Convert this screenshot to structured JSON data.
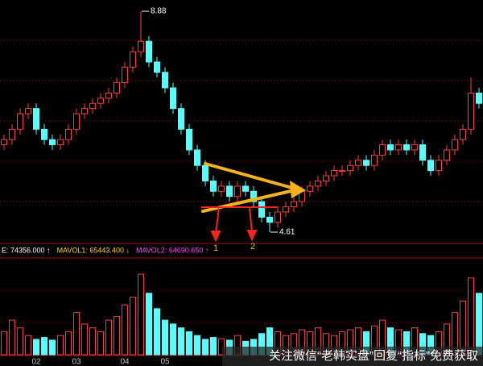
{
  "chart_data": {
    "type": "candlestick",
    "categories": [
      null,
      null,
      null,
      null,
      "02",
      null,
      null,
      null,
      null,
      "03",
      null,
      null,
      null,
      null,
      null,
      "04",
      null,
      null,
      null,
      null,
      "05",
      null,
      null,
      null,
      null,
      null,
      null,
      null,
      null,
      null,
      null,
      null,
      null,
      null,
      null,
      null,
      null,
      null,
      null,
      null,
      null,
      null,
      null,
      null,
      null,
      null,
      null,
      null,
      null,
      null,
      null,
      null,
      null,
      null,
      null,
      null,
      null,
      null,
      null,
      null
    ],
    "open": [
      6.3,
      6.4,
      6.6,
      6.9,
      7.0,
      6.6,
      6.4,
      6.3,
      6.4,
      6.6,
      6.9,
      7.0,
      7.1,
      7.2,
      7.3,
      7.5,
      7.8,
      8.1,
      8.3,
      7.9,
      7.7,
      7.4,
      7.0,
      6.6,
      6.2,
      5.9,
      5.6,
      5.4,
      5.5,
      5.3,
      5.5,
      5.4,
      5.2,
      4.9,
      4.8,
      5.0,
      5.1,
      5.2,
      5.4,
      5.5,
      5.6,
      5.7,
      5.8,
      5.8,
      5.9,
      6.0,
      5.9,
      6.1,
      6.3,
      6.2,
      6.3,
      6.2,
      6.3,
      6.0,
      5.8,
      6.0,
      6.2,
      6.4,
      6.6,
      7.3
    ],
    "high": [
      6.5,
      6.7,
      7.0,
      7.1,
      7.1,
      6.7,
      6.5,
      6.5,
      6.7,
      7.0,
      7.1,
      7.2,
      7.3,
      7.4,
      7.6,
      7.9,
      8.2,
      8.88,
      8.4,
      8.0,
      7.8,
      7.5,
      7.1,
      6.7,
      6.3,
      6.0,
      5.7,
      5.6,
      5.6,
      5.6,
      5.6,
      5.5,
      5.3,
      5.0,
      5.1,
      5.2,
      5.3,
      5.5,
      5.6,
      5.7,
      5.8,
      5.9,
      5.9,
      6.0,
      6.1,
      6.1,
      6.2,
      6.4,
      6.4,
      6.4,
      6.4,
      6.4,
      6.4,
      6.1,
      6.1,
      6.3,
      6.5,
      6.7,
      7.6,
      7.4
    ],
    "low": [
      6.2,
      6.3,
      6.5,
      6.8,
      6.5,
      6.3,
      6.2,
      6.2,
      6.3,
      6.5,
      6.8,
      6.9,
      7.0,
      7.1,
      7.2,
      7.4,
      7.7,
      8.0,
      7.8,
      7.6,
      7.3,
      6.9,
      6.5,
      6.1,
      5.8,
      5.5,
      5.3,
      5.3,
      5.2,
      5.2,
      5.3,
      5.1,
      4.8,
      4.61,
      4.7,
      4.9,
      5.0,
      5.1,
      5.3,
      5.4,
      5.5,
      5.6,
      5.7,
      5.7,
      5.8,
      5.8,
      5.8,
      6.0,
      6.1,
      6.1,
      6.1,
      6.1,
      5.9,
      5.7,
      5.7,
      5.9,
      6.1,
      6.3,
      6.5,
      7.0
    ],
    "close": [
      6.4,
      6.6,
      6.9,
      7.0,
      6.6,
      6.4,
      6.3,
      6.4,
      6.6,
      6.9,
      7.0,
      7.1,
      7.2,
      7.3,
      7.5,
      7.8,
      8.1,
      8.3,
      7.9,
      7.7,
      7.4,
      7.0,
      6.6,
      6.2,
      5.9,
      5.6,
      5.4,
      5.5,
      5.3,
      5.5,
      5.4,
      5.2,
      4.9,
      4.8,
      5.0,
      5.1,
      5.2,
      5.4,
      5.5,
      5.6,
      5.7,
      5.8,
      5.8,
      5.9,
      6.0,
      5.9,
      6.1,
      6.3,
      6.2,
      6.3,
      6.2,
      6.3,
      6.0,
      5.8,
      6.0,
      6.2,
      6.4,
      6.6,
      7.3,
      7.1
    ],
    "volume": [
      60000,
      90000,
      70000,
      50000,
      40000,
      45000,
      38000,
      50000,
      60000,
      110000,
      80000,
      70000,
      60000,
      90000,
      100000,
      130000,
      150000,
      210000,
      160000,
      120000,
      90000,
      80000,
      70000,
      60000,
      50000,
      40000,
      45000,
      42000,
      38000,
      50000,
      35000,
      40000,
      55000,
      70000,
      60000,
      50000,
      55000,
      65000,
      60000,
      70000,
      55000,
      50000,
      60000,
      65000,
      70000,
      60000,
      75000,
      90000,
      70000,
      65000,
      60000,
      70000,
      55000,
      50000,
      60000,
      80000,
      110000,
      140000,
      200000,
      160000
    ],
    "up_color": "#ff3c3c",
    "down_color": "#54ffff",
    "volume_legend": [
      {
        "text": "E: 74356.000 ↑",
        "color": "#ffffff"
      },
      {
        "text": "MAVOL1: 65443.400 ↓",
        "color": "#ffd700"
      },
      {
        "text": "MAVOL2: 64690.650 ↑",
        "color": "#ff44ff"
      }
    ],
    "annotations": [
      "1",
      "2"
    ],
    "watermark": "关注微信“老韩实盘”回复“指标”免费获取"
  }
}
